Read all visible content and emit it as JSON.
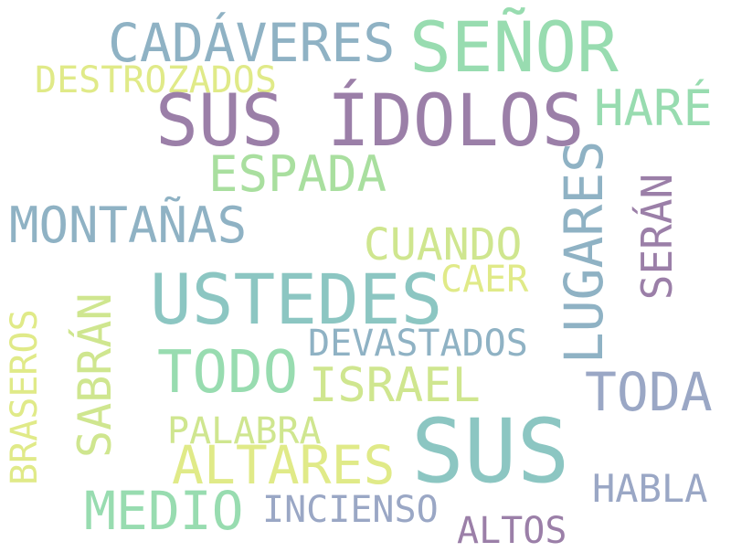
{
  "words": {
    "sus_idolos": "SUS ÍDOLOS",
    "senor": "SEÑOR",
    "cadaveres": "CADÁVERES",
    "destrozados": "DESTROZADOS",
    "hare": "HARÉ",
    "espada": "ESPADA",
    "montanas": "MONTAÑAS",
    "cuando": "CUANDO",
    "caer": "CAER",
    "lugares": "LUGARES",
    "seran": "SERÁN",
    "ustedes": "USTEDES",
    "devastados": "DEVASTADOS",
    "todo": "TODO",
    "israel": "ISRAEL",
    "toda": "TODA",
    "braseros": "BRASEROS",
    "sabran": "SABRÁN",
    "palabra": "PALABRA",
    "altares": "ALTARES",
    "sus": "SUS",
    "medio": "MEDIO",
    "incienso": "INCIENSO",
    "habla": "HABLA",
    "altos": "ALTOS"
  }
}
